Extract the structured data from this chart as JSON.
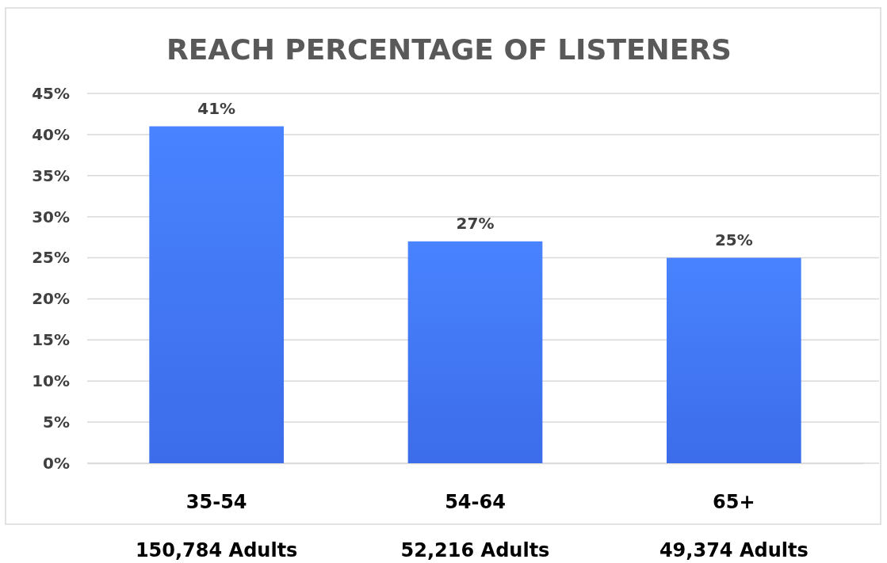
{
  "chart_data": {
    "type": "bar",
    "title": "REACH PERCENTAGE OF LISTENERS",
    "categories": [
      "35-54",
      "54-64",
      "65+"
    ],
    "values": [
      41,
      27,
      25
    ],
    "color": "#3f72f6",
    "value_labels": [
      "41%",
      "27%",
      "25%"
    ],
    "ylim": [
      0,
      45
    ],
    "yticks": [
      {
        "value": 0,
        "label": "0%"
      },
      {
        "value": 5,
        "label": "5%"
      },
      {
        "value": 10,
        "label": "10%"
      },
      {
        "value": 15,
        "label": "15%"
      },
      {
        "value": 20,
        "label": "20%"
      },
      {
        "value": 25,
        "label": "25%"
      },
      {
        "value": 30,
        "label": "30%"
      },
      {
        "value": 35,
        "label": "35%"
      },
      {
        "value": 40,
        "label": "40%"
      },
      {
        "value": 45,
        "label": "45%"
      }
    ],
    "grid": "y",
    "annotations": [
      "150,784 Adults",
      "52,216 Adults",
      "49,374 Adults"
    ]
  }
}
